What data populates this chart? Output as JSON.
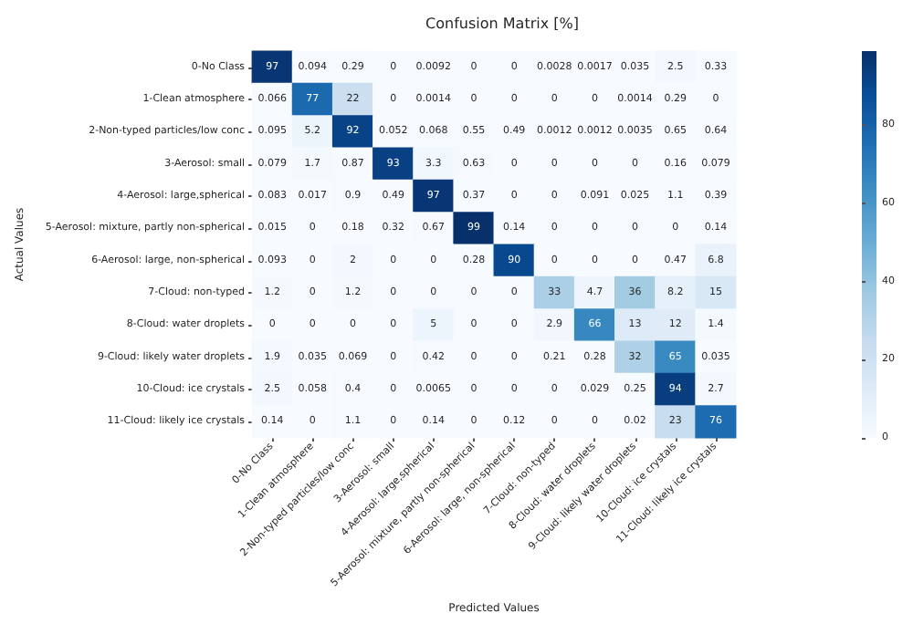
{
  "chart_data": {
    "type": "heatmap",
    "title": "Confusion Matrix [%]",
    "xlabel": "Predicted Values",
    "ylabel": "Actual Values",
    "categories": [
      "0-No Class",
      "1-Clean atmosphere",
      "2-Non-typed particles/low conc",
      "3-Aerosol: small",
      "4-Aerosol: large,spherical",
      "5-Aerosol: mixture, partly non-spherical",
      "6-Aerosol: large, non-spherical",
      "7-Cloud: non-typed",
      "8-Cloud: water droplets",
      "9-Cloud: likely water droplets",
      "10-Cloud: ice crystals",
      "11-Cloud: likely ice crystals"
    ],
    "y_categories": [
      "0-No Class",
      "1-Clean atmosphere",
      "2-Non-typed particles/low conc",
      "3-Aerosol: small",
      "4-Aerosol: large,spherical",
      "5-Aerosol: mixture, partly non-spherical",
      "6-Aerosol: large, non-spherical",
      "7-Cloud: non-typed",
      "8-Cloud: water droplets",
      "9-Cloud: likely water droplets",
      "10-Cloud: ice crystals",
      "11-Cloud: likely ice crystals"
    ],
    "cells": [
      [
        97,
        0.094,
        0.29,
        0,
        0.0092,
        0,
        0,
        0.0028,
        0.0017,
        0.035,
        2.5,
        0.33
      ],
      [
        0.066,
        77,
        22,
        0,
        0.0014,
        0,
        0,
        0,
        0,
        0.0014,
        0.29,
        0
      ],
      [
        0.095,
        5.2,
        92,
        0.052,
        0.068,
        0.55,
        0.49,
        0.0012,
        0.0012,
        0.0035,
        0.65,
        0.64
      ],
      [
        0.079,
        1.7,
        0.87,
        93,
        3.3,
        0.63,
        0,
        0,
        0,
        0,
        0.16,
        0.079
      ],
      [
        0.083,
        0.017,
        0.9,
        0.49,
        97,
        0.37,
        0,
        0,
        0.091,
        0.025,
        1.1,
        0.39
      ],
      [
        0.015,
        0,
        0.18,
        0.32,
        0.67,
        99,
        0.14,
        0,
        0,
        0,
        0,
        0.14
      ],
      [
        0.093,
        0,
        2,
        0,
        0,
        0.28,
        90,
        0,
        0,
        0,
        0.47,
        6.8
      ],
      [
        1.2,
        0,
        1.2,
        0,
        0,
        0,
        0,
        33,
        4.7,
        36,
        8.2,
        15
      ],
      [
        0,
        0,
        0,
        0,
        5,
        0,
        0,
        2.9,
        66,
        13,
        12,
        1.4
      ],
      [
        1.9,
        0.035,
        0.069,
        0,
        0.42,
        0,
        0,
        0.21,
        0.28,
        32,
        65,
        0.035
      ],
      [
        2.5,
        0.058,
        0.4,
        0,
        0.0065,
        0,
        0,
        0,
        0.029,
        0.25,
        94,
        2.7
      ],
      [
        0.14,
        0,
        1.1,
        0,
        0.14,
        0,
        0.12,
        0,
        0,
        0.02,
        23,
        76
      ]
    ],
    "clim": [
      0,
      99
    ],
    "cticks": [
      0,
      20,
      40,
      60,
      80
    ],
    "data_labels": true
  }
}
